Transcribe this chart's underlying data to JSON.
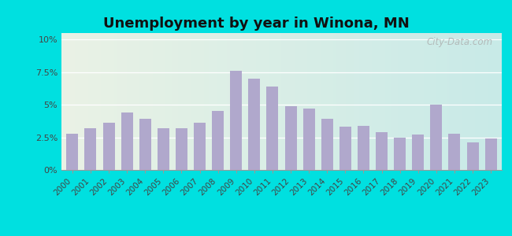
{
  "title": "Unemployment by year in Winona, MN",
  "years": [
    "2000",
    "2001",
    "2002",
    "2003",
    "2004",
    "2005",
    "2006",
    "2007",
    "2008",
    "2009",
    "2010",
    "2011",
    "2012",
    "2013",
    "2014",
    "2015",
    "2016",
    "2017",
    "2018",
    "2019",
    "2020",
    "2021",
    "2022",
    "2023"
  ],
  "values": [
    2.8,
    3.2,
    3.6,
    4.4,
    3.9,
    3.2,
    3.2,
    3.6,
    4.5,
    7.6,
    7.0,
    6.4,
    4.9,
    4.7,
    3.9,
    3.3,
    3.4,
    2.9,
    2.5,
    2.7,
    5.0,
    2.8,
    2.1,
    2.4
  ],
  "bar_color": "#b0a8cc",
  "bg_outer": "#00e0e0",
  "bg_plot_top": "#eaf2e5",
  "bg_plot_bottom": "#c8eae8",
  "yticks": [
    0,
    2.5,
    5.0,
    7.5,
    10.0
  ],
  "ytick_labels": [
    "0%",
    "2.5%",
    "5%",
    "7.5%",
    "10%"
  ],
  "ylim": [
    0,
    10.5
  ],
  "watermark": "City-Data.com",
  "title_fontsize": 13,
  "tick_fontsize": 7.5,
  "ytick_fontsize": 8
}
